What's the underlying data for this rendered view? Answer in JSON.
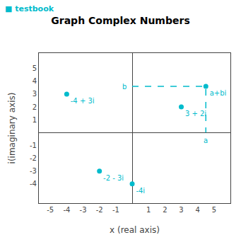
{
  "chart_data": {
    "type": "scatter",
    "title": "Graph Complex Numbers",
    "xlabel": "x (real axis)",
    "ylabel": "i(imaginary axis)",
    "xlim": [
      -5.7,
      6.0
    ],
    "ylim": [
      -5.5,
      6.2
    ],
    "xticks": [
      -5,
      -4,
      -3,
      -2,
      -1,
      1,
      2,
      3,
      4,
      5
    ],
    "yticks": [
      -4,
      -3,
      -2,
      -1,
      1,
      2,
      3,
      4,
      5
    ],
    "grid": false,
    "series": [
      {
        "type": "line",
        "line_style": "dashed",
        "color": "#00BBCC",
        "x": [
          0,
          4.5,
          4.5
        ],
        "y": [
          3.6,
          3.6,
          0
        ]
      },
      {
        "type": "scatter",
        "marker": "circle",
        "color": "#00BBCC",
        "x": [
          -4,
          3,
          0,
          -2,
          4.5
        ],
        "y": [
          3,
          2,
          -4,
          -3,
          3.6
        ],
        "labels": [
          "-4 + 3i",
          "3 + 2i",
          "-4i",
          "-2 - 3i",
          "a+bi"
        ]
      }
    ],
    "annotations": [
      {
        "text": "a",
        "x": 4.5,
        "y": 0
      },
      {
        "text": "b",
        "x": 0,
        "y": 3.6
      },
      {
        "text": "■ testbook",
        "color": "#00BBCC"
      }
    ]
  }
}
